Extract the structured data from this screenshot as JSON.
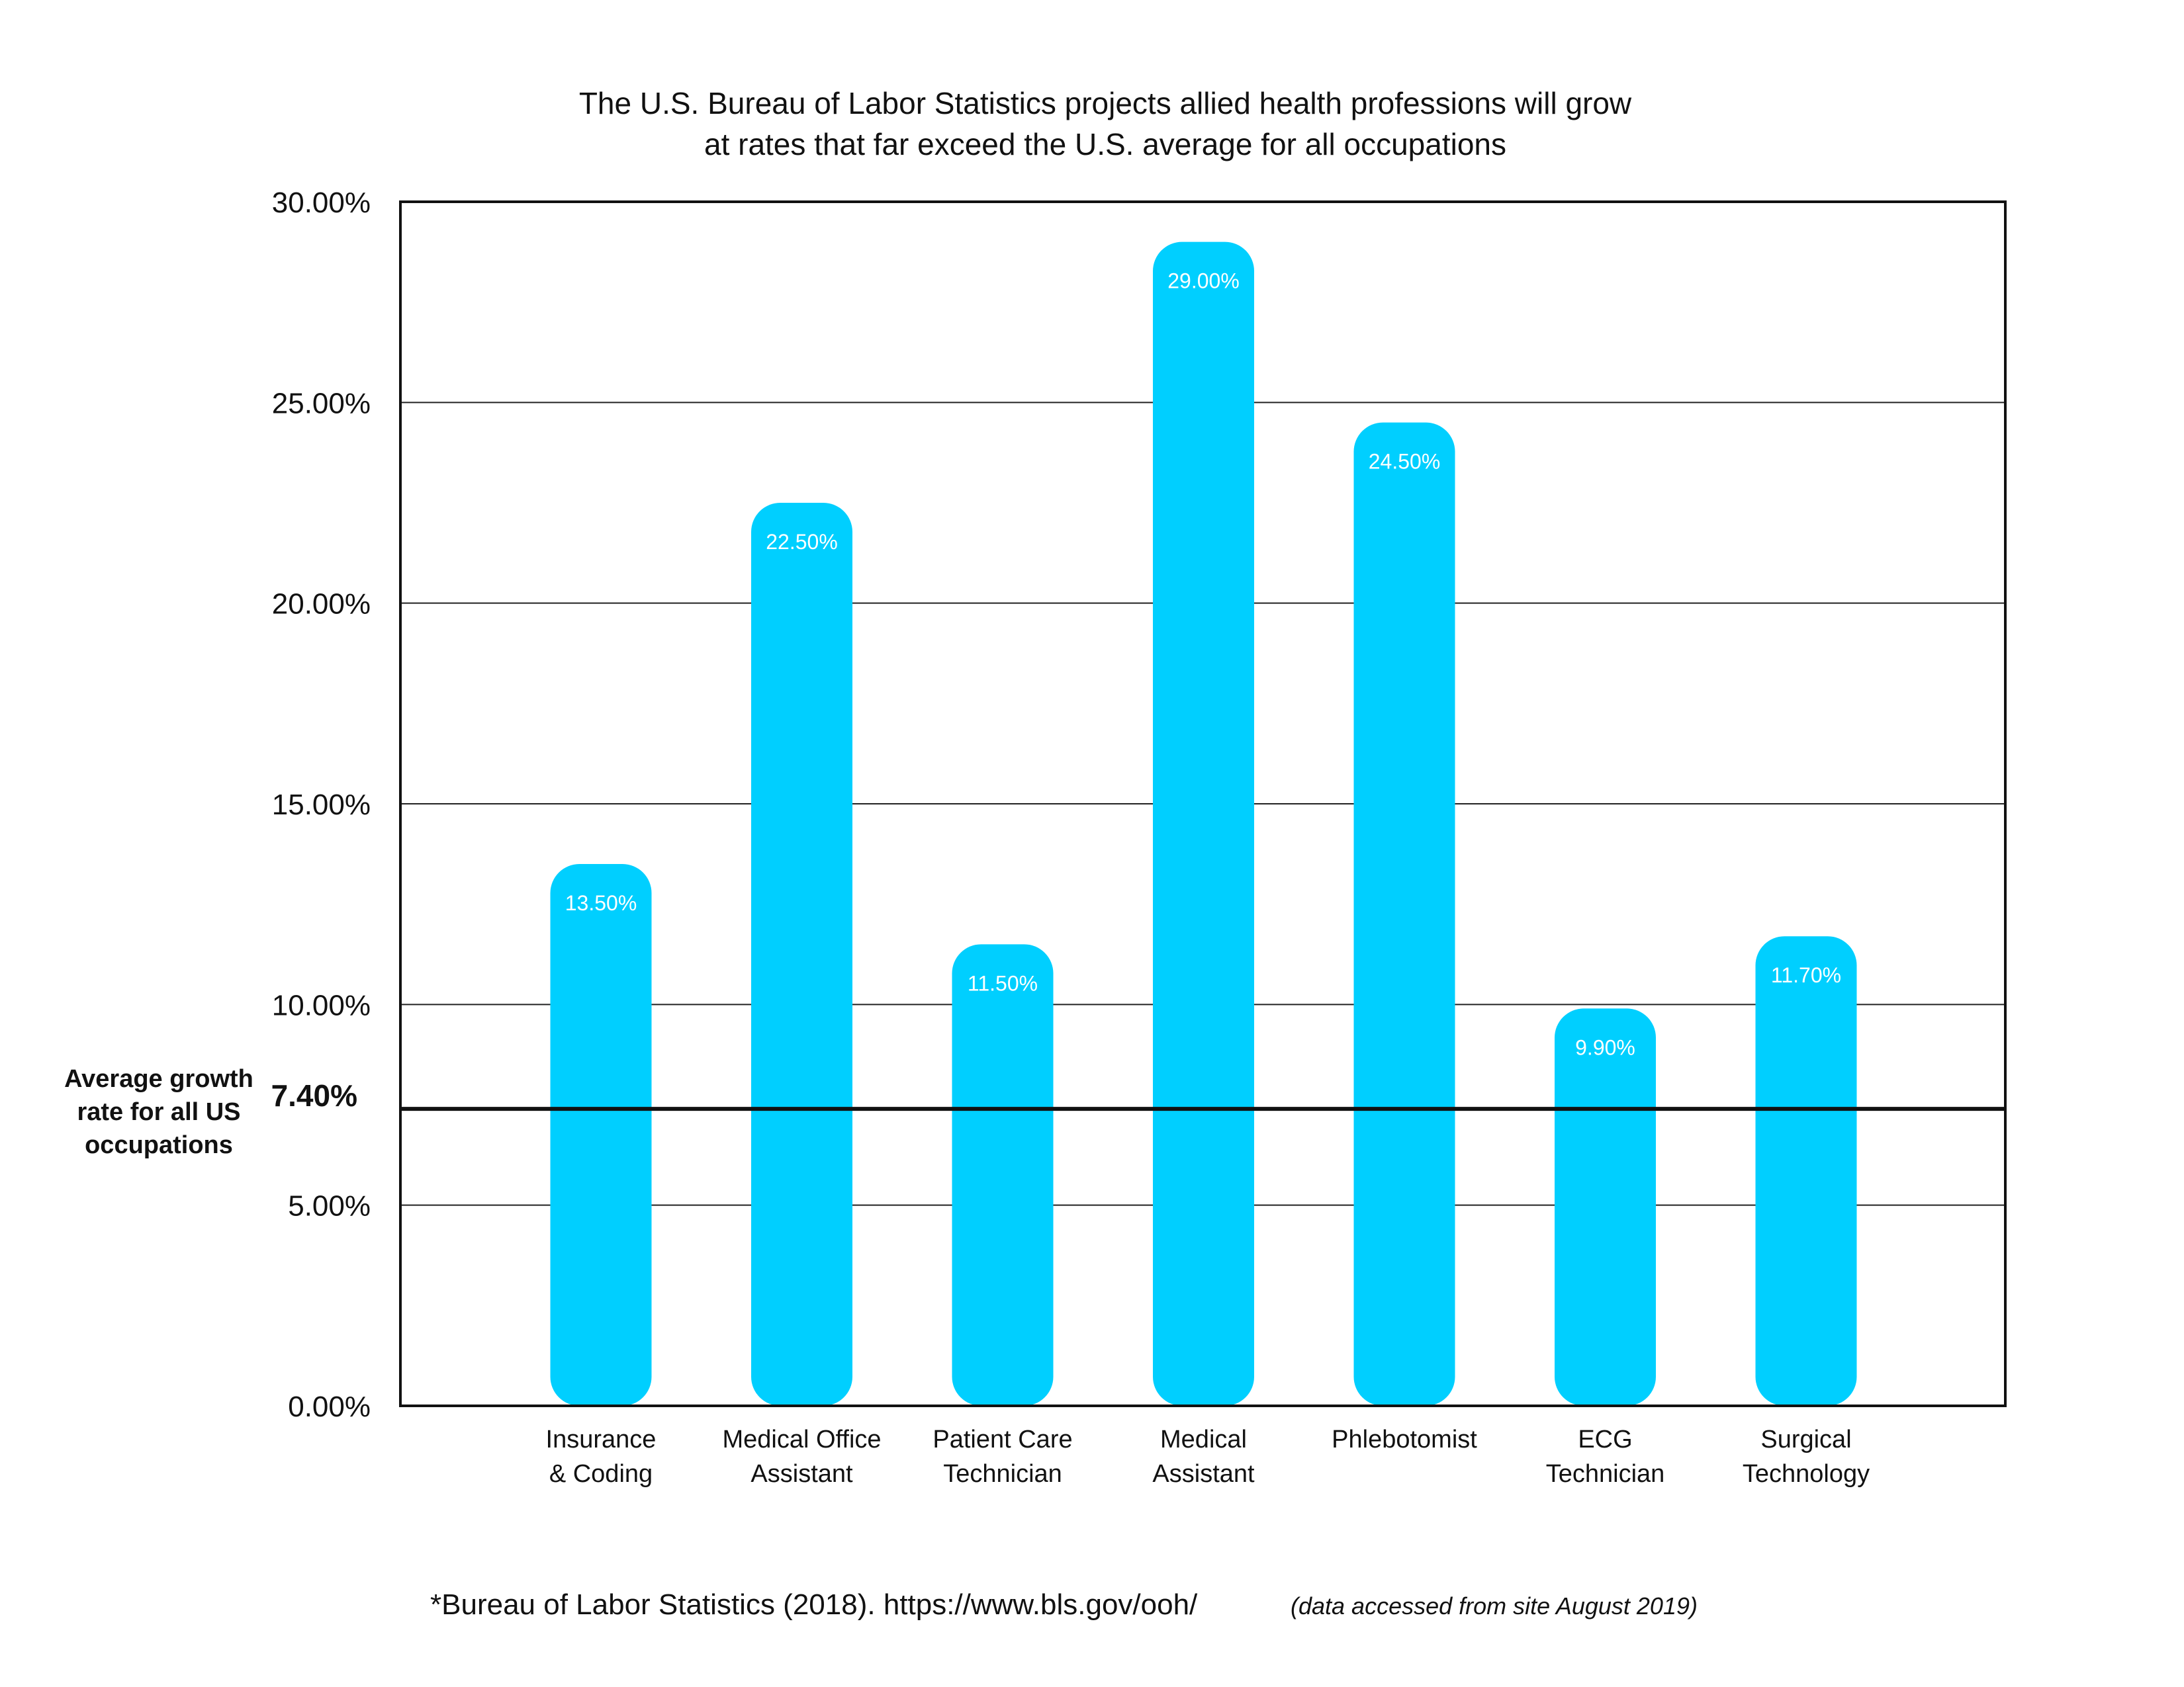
{
  "chart_data": {
    "type": "bar",
    "title": [
      "The U.S. Bureau of Labor Statistics projects allied health professions will grow",
      "at rates that far exceed the U.S. average for all occupations"
    ],
    "categories": [
      [
        "Insurance",
        "& Coding"
      ],
      [
        "Medical Office",
        "Assistant"
      ],
      [
        "Patient Care",
        "Technician"
      ],
      [
        "Medical",
        "Assistant"
      ],
      [
        "Phlebotomist"
      ],
      [
        "ECG",
        "Technician"
      ],
      [
        "Surgical",
        "Technology"
      ]
    ],
    "values": [
      13.5,
      22.5,
      11.5,
      29.0,
      24.5,
      9.9,
      11.7
    ],
    "value_labels": [
      "13.50%",
      "22.50%",
      "11.50%",
      "29.00%",
      "24.50%",
      "9.90%",
      "11.70%"
    ],
    "ylim": [
      0,
      30
    ],
    "yticks": [
      0,
      5,
      10,
      15,
      20,
      25,
      30
    ],
    "ytick_labels": [
      "0.00%",
      "5.00%",
      "10.00%",
      "15.00%",
      "20.00%",
      "25.00%",
      "30.00%"
    ],
    "xlabel": "",
    "ylabel": "",
    "grid": true,
    "legend": "none",
    "bar_color": "#00cfff",
    "reference_line": {
      "value": 7.4,
      "label_lines": [
        "Average growth",
        "rate for all US",
        "occupations"
      ],
      "value_label": "7.40%",
      "color": "#111111"
    }
  },
  "source": {
    "citation": "*Bureau of Labor Statistics (2018). https://www.bls.gov/ooh/",
    "note": "(data accessed from site August 2019)"
  }
}
